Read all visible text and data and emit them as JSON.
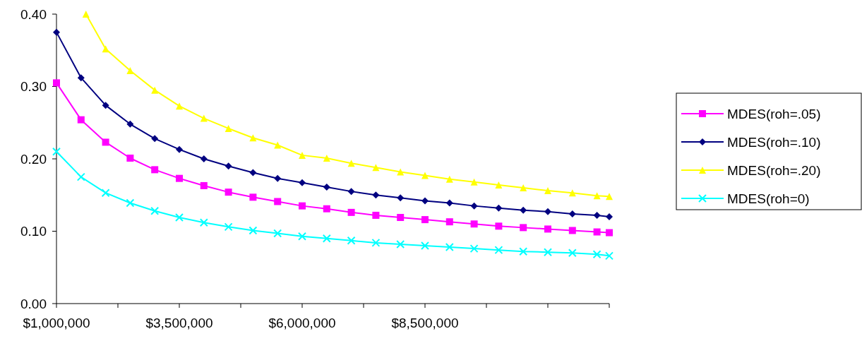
{
  "chart_data": {
    "type": "line",
    "x": [
      1000000,
      1500000,
      2000000,
      2500000,
      3000000,
      3500000,
      4000000,
      4500000,
      5000000,
      5500000,
      6000000,
      6500000,
      7000000,
      7500000,
      8000000,
      8500000,
      9000000,
      9500000,
      10000000,
      10500000,
      11000000,
      11500000,
      12000000,
      12250000
    ],
    "series": [
      {
        "name": "MDES(roh=.05)",
        "color": "#ff00ff",
        "marker": "square",
        "values": [
          0.305,
          0.254,
          0.223,
          0.201,
          0.185,
          0.173,
          0.163,
          0.154,
          0.147,
          0.141,
          0.135,
          0.131,
          0.126,
          0.122,
          0.119,
          0.116,
          0.113,
          0.11,
          0.107,
          0.105,
          0.103,
          0.101,
          0.099,
          0.098
        ]
      },
      {
        "name": "MDES(roh=.10)",
        "color": "#000080",
        "marker": "diamond",
        "values": [
          0.375,
          0.312,
          0.274,
          0.248,
          0.228,
          0.213,
          0.2,
          0.19,
          0.181,
          0.173,
          0.167,
          0.161,
          0.155,
          0.15,
          0.146,
          0.142,
          0.139,
          0.135,
          0.132,
          0.129,
          0.127,
          0.124,
          0.122,
          0.12
        ]
      },
      {
        "name": "MDES(roh=.20)",
        "color": "#ffff00",
        "marker": "triangle",
        "x": [
          1600000,
          2000000,
          2500000,
          3000000,
          3500000,
          4000000,
          4500000,
          5000000,
          5500000,
          6000000,
          6500000,
          7000000,
          7500000,
          8000000,
          8500000,
          9000000,
          9500000,
          10000000,
          10500000,
          11000000,
          11500000,
          12000000,
          12250000
        ],
        "values": [
          0.4,
          0.352,
          0.322,
          0.295,
          0.273,
          0.256,
          0.242,
          0.229,
          0.219,
          0.205,
          0.201,
          0.194,
          0.188,
          0.182,
          0.177,
          0.172,
          0.168,
          0.164,
          0.16,
          0.156,
          0.153,
          0.149,
          0.148
        ]
      },
      {
        "name": "MDES(roh=0)",
        "color": "#00ffff",
        "marker": "cross",
        "values": [
          0.21,
          0.175,
          0.153,
          0.139,
          0.128,
          0.119,
          0.112,
          0.106,
          0.101,
          0.097,
          0.093,
          0.09,
          0.087,
          0.084,
          0.082,
          0.08,
          0.078,
          0.076,
          0.074,
          0.072,
          0.071,
          0.07,
          0.068,
          0.066
        ]
      }
    ],
    "xlim": [
      1000000,
      12250000
    ],
    "xticks": [
      {
        "value": 1000000,
        "label": "$1,000,000"
      },
      {
        "value": 2250000,
        "label": null
      },
      {
        "value": 3500000,
        "label": "$3,500,000"
      },
      {
        "value": 4750000,
        "label": null
      },
      {
        "value": 6000000,
        "label": "$6,000,000"
      },
      {
        "value": 7250000,
        "label": null
      },
      {
        "value": 8500000,
        "label": "$8,500,000"
      },
      {
        "value": 9750000,
        "label": null
      },
      {
        "value": 11000000,
        "label": null
      },
      {
        "value": 12250000,
        "label": null
      }
    ],
    "ylim": [
      0,
      0.4
    ],
    "yticks": [
      {
        "value": 0,
        "label": "0.00"
      },
      {
        "value": 0.1,
        "label": "0.10"
      },
      {
        "value": 0.2,
        "label": "0.20"
      },
      {
        "value": 0.3,
        "label": "0.30"
      },
      {
        "value": 0.4,
        "label": "0.40"
      }
    ],
    "legend": "right"
  }
}
